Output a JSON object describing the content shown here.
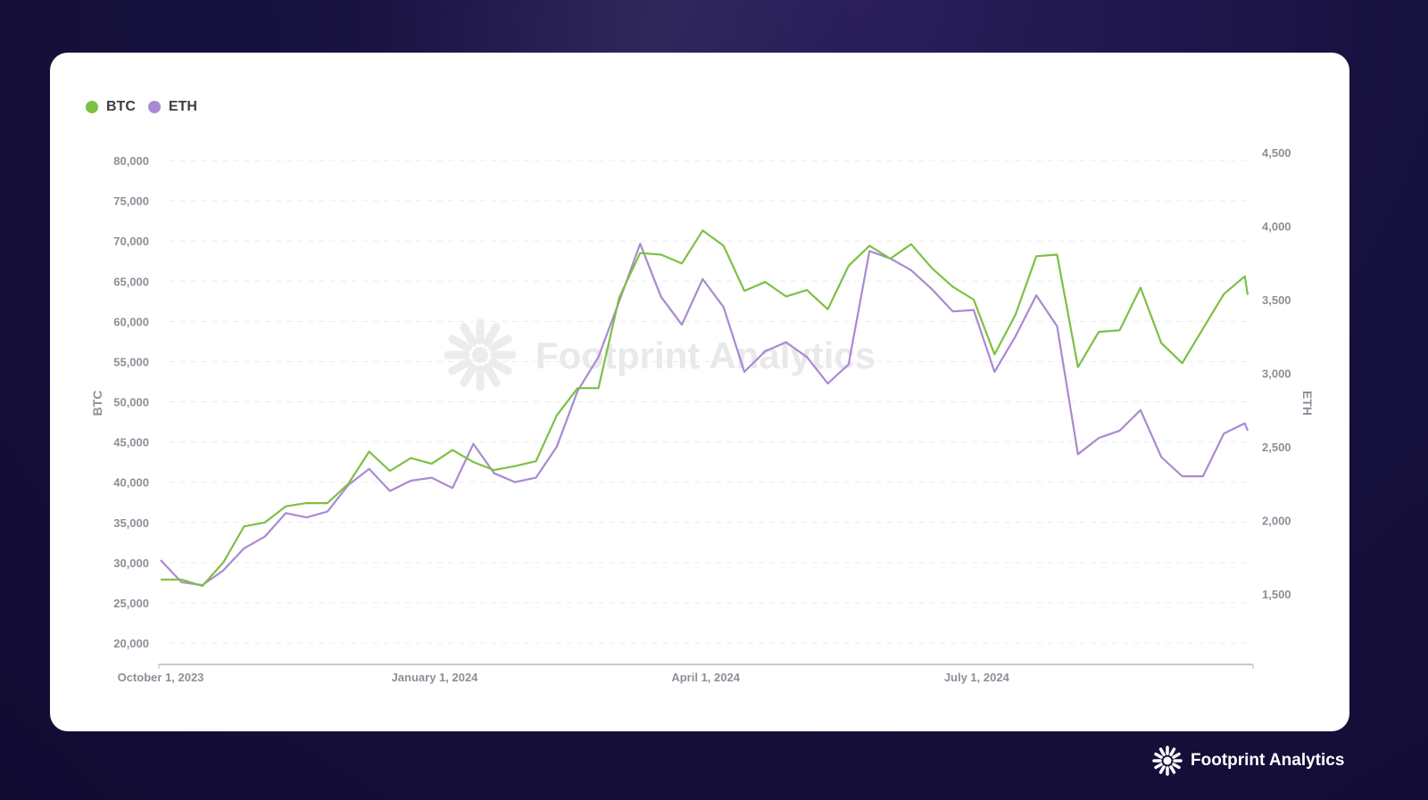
{
  "brand": {
    "name": "Footprint Analytics",
    "watermark": "Footprint Analytics"
  },
  "colors": {
    "btc": "#7dc044",
    "eth": "#a98ad0",
    "background": "#150f3a",
    "card": "#ffffff"
  },
  "chart_data": {
    "type": "line",
    "title": "",
    "legend": {
      "placement": "top-left",
      "entries": [
        "BTC",
        "ETH"
      ]
    },
    "grid": true,
    "x": {
      "label": "",
      "tick_labels": [
        "October 1, 2023",
        "January 1, 2024",
        "April 1, 2024",
        "July 1, 2024"
      ],
      "tick_dates": [
        "2023-10-01",
        "2024-01-01",
        "2024-04-01",
        "2024-07-01"
      ],
      "range": [
        "2023-10-01",
        "2024-09-30"
      ]
    },
    "y_left": {
      "label": "BTC",
      "tick_labels": [
        "20,000",
        "25,000",
        "30,000",
        "35,000",
        "40,000",
        "45,000",
        "50,000",
        "55,000",
        "60,000",
        "65,000",
        "70,000",
        "75,000",
        "80,000"
      ],
      "ticks": [
        20000,
        25000,
        30000,
        35000,
        40000,
        45000,
        50000,
        55000,
        60000,
        65000,
        70000,
        75000,
        80000
      ],
      "range": [
        20000,
        80000
      ]
    },
    "y_right": {
      "label": "ETH",
      "tick_labels": [
        "1,500",
        "2,000",
        "2,500",
        "3,000",
        "3,500",
        "4,000",
        "4,500"
      ],
      "ticks": [
        1500,
        2000,
        2500,
        3000,
        3500,
        4000,
        4500
      ],
      "range": [
        1500,
        4500
      ]
    },
    "dates": [
      "2023-10-01",
      "2023-10-08",
      "2023-10-15",
      "2023-10-22",
      "2023-10-29",
      "2023-11-05",
      "2023-11-12",
      "2023-11-19",
      "2023-11-26",
      "2023-12-03",
      "2023-12-10",
      "2023-12-17",
      "2023-12-24",
      "2023-12-31",
      "2024-01-07",
      "2024-01-14",
      "2024-01-21",
      "2024-01-28",
      "2024-02-04",
      "2024-02-11",
      "2024-02-18",
      "2024-02-25",
      "2024-03-03",
      "2024-03-10",
      "2024-03-17",
      "2024-03-24",
      "2024-03-31",
      "2024-04-07",
      "2024-04-14",
      "2024-04-21",
      "2024-04-28",
      "2024-05-05",
      "2024-05-12",
      "2024-05-19",
      "2024-05-26",
      "2024-06-02",
      "2024-06-09",
      "2024-06-16",
      "2024-06-23",
      "2024-06-30",
      "2024-07-07",
      "2024-07-14",
      "2024-07-21",
      "2024-07-28",
      "2024-08-04",
      "2024-08-11",
      "2024-08-18",
      "2024-08-25",
      "2024-09-01",
      "2024-09-08",
      "2024-09-15",
      "2024-09-22",
      "2024-09-29",
      "2024-09-30"
    ],
    "series": [
      {
        "name": "BTC",
        "axis": "left",
        "values": [
          27900,
          27900,
          27100,
          30000,
          34500,
          35000,
          37000,
          37400,
          37400,
          39800,
          43800,
          41400,
          43000,
          42300,
          44000,
          42500,
          41500,
          42000,
          42600,
          48300,
          51700,
          51700,
          63000,
          68500,
          68300,
          67200,
          71300,
          69400,
          63800,
          64900,
          63100,
          63900,
          61500,
          66900,
          69400,
          67800,
          69600,
          66600,
          64300,
          62700,
          55900,
          60800,
          68100,
          68300,
          54300,
          58700,
          58900,
          64200,
          57300,
          54800,
          59100,
          63400,
          65600,
          63300
        ]
      },
      {
        "name": "ETH",
        "axis": "right",
        "values": [
          1730,
          1580,
          1560,
          1660,
          1810,
          1890,
          2050,
          2020,
          2060,
          2240,
          2350,
          2200,
          2270,
          2290,
          2220,
          2520,
          2320,
          2260,
          2290,
          2500,
          2880,
          3110,
          3490,
          3880,
          3520,
          3330,
          3640,
          3450,
          3010,
          3150,
          3210,
          3110,
          2930,
          3060,
          3830,
          3780,
          3700,
          3570,
          3420,
          3430,
          3010,
          3250,
          3530,
          3320,
          2450,
          2560,
          2610,
          2750,
          2430,
          2300,
          2300,
          2590,
          2660,
          2610
        ]
      }
    ]
  }
}
